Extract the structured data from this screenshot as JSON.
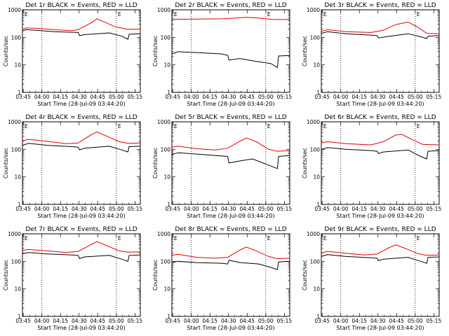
{
  "chart_data": [
    {
      "type": "line",
      "title": "Det 1r BLACK = Events, RED = LLD",
      "xlabel": "Start Time (28-Jul-09 03:44:20)",
      "ylabel": "Counts/sec",
      "x_ticks": [
        "03:45",
        "04:00",
        "04:15",
        "04:30",
        "04:45",
        "05:00",
        "05:15"
      ],
      "y_ticks": [
        "1",
        "10",
        "100",
        "1000"
      ],
      "y_scale": "log",
      "ylim": [
        1,
        1000
      ],
      "markers": [
        "04:00",
        "05:00"
      ],
      "corner_mark": "E",
      "series": [
        {
          "color": "#000000",
          "values": [
            [
              0,
              170
            ],
            [
              3,
              190
            ],
            [
              15,
              175
            ],
            [
              25,
              160
            ],
            [
              45,
              150
            ],
            [
              46,
              115
            ],
            [
              50,
              125
            ],
            [
              70,
              145
            ],
            [
              80,
              110
            ],
            [
              85,
              85
            ],
            [
              86,
              130
            ],
            [
              95,
              135
            ]
          ]
        },
        {
          "color": "#e00000",
          "values": [
            [
              0,
              190
            ],
            [
              3,
              220
            ],
            [
              15,
              210
            ],
            [
              25,
              190
            ],
            [
              40,
              175
            ],
            [
              45,
              190
            ],
            [
              55,
              330
            ],
            [
              60,
              470
            ],
            [
              68,
              330
            ],
            [
              75,
              240
            ],
            [
              85,
              195
            ],
            [
              95,
              200
            ]
          ]
        }
      ]
    },
    {
      "type": "line",
      "title": "Det 2r BLACK = Events, RED = LLD",
      "xlabel": "Start Time (28-Jul-09 03:44:20)",
      "ylabel": "Counts/sec",
      "x_ticks": [
        "03:45",
        "04:00",
        "04:15",
        "04:30",
        "04:45",
        "05:00",
        "05:15"
      ],
      "y_ticks": [
        "1",
        "10",
        "100",
        "1000"
      ],
      "y_scale": "log",
      "ylim": [
        1,
        1000
      ],
      "markers": [
        "04:00",
        "05:00"
      ],
      "corner_mark": "E",
      "series": [
        {
          "color": "#000000",
          "values": [
            [
              0,
              25
            ],
            [
              5,
              30
            ],
            [
              20,
              28
            ],
            [
              40,
              25
            ],
            [
              45,
              22
            ],
            [
              46,
              15
            ],
            [
              55,
              17
            ],
            [
              65,
              14
            ],
            [
              80,
              11
            ],
            [
              85,
              8
            ],
            [
              86,
              21
            ],
            [
              95,
              22
            ]
          ]
        },
        {
          "color": "#e00000",
          "values": [
            [
              0,
              450
            ],
            [
              20,
              460
            ],
            [
              40,
              470
            ],
            [
              55,
              510
            ],
            [
              60,
              530
            ],
            [
              70,
              500
            ],
            [
              80,
              450
            ],
            [
              95,
              440
            ]
          ]
        }
      ]
    },
    {
      "type": "line",
      "title": "Det 3r BLACK = Events, RED = LLD",
      "xlabel": "Start Time (28-Jul-09 03:44:20)",
      "ylabel": "Counts/sec",
      "x_ticks": [
        "03:45",
        "04:00",
        "04:15",
        "04:30",
        "04:45",
        "05:00",
        "05:15"
      ],
      "y_ticks": [
        "1",
        "10",
        "100",
        "1000"
      ],
      "y_scale": "log",
      "ylim": [
        1,
        1000
      ],
      "markers": [
        "04:00",
        "05:00"
      ],
      "corner_mark": "E",
      "series": [
        {
          "color": "#000000",
          "values": [
            [
              0,
              140
            ],
            [
              5,
              160
            ],
            [
              20,
              135
            ],
            [
              40,
              120
            ],
            [
              45,
              115
            ],
            [
              46,
              95
            ],
            [
              55,
              110
            ],
            [
              70,
              135
            ],
            [
              80,
              105
            ],
            [
              85,
              90
            ],
            [
              86,
              110
            ],
            [
              95,
              115
            ]
          ]
        },
        {
          "color": "#e00000",
          "values": [
            [
              0,
              165
            ],
            [
              5,
              190
            ],
            [
              20,
              160
            ],
            [
              40,
              150
            ],
            [
              50,
              180
            ],
            [
              60,
              290
            ],
            [
              70,
              360
            ],
            [
              78,
              230
            ],
            [
              85,
              140
            ],
            [
              95,
              135
            ]
          ]
        }
      ]
    },
    {
      "type": "line",
      "title": "Det 4r BLACK = Events, RED = LLD",
      "xlabel": "Start Time (28-Jul-09 03:44:20)",
      "ylabel": "Counts/sec",
      "x_ticks": [
        "03:45",
        "04:00",
        "04:15",
        "04:30",
        "04:45",
        "05:00",
        "05:15"
      ],
      "y_ticks": [
        "1",
        "10",
        "100",
        "1000"
      ],
      "y_scale": "log",
      "ylim": [
        1,
        1000
      ],
      "markers": [
        "04:00",
        "05:00"
      ],
      "corner_mark": "E",
      "series": [
        {
          "color": "#000000",
          "values": [
            [
              0,
              140
            ],
            [
              5,
              165
            ],
            [
              20,
              140
            ],
            [
              40,
              125
            ],
            [
              45,
              120
            ],
            [
              46,
              95
            ],
            [
              50,
              110
            ],
            [
              70,
              130
            ],
            [
              80,
              95
            ],
            [
              85,
              80
            ],
            [
              86,
              125
            ],
            [
              95,
              130
            ]
          ]
        },
        {
          "color": "#e00000",
          "values": [
            [
              0,
              205
            ],
            [
              5,
              230
            ],
            [
              20,
              195
            ],
            [
              35,
              160
            ],
            [
              45,
              170
            ],
            [
              55,
              330
            ],
            [
              60,
              430
            ],
            [
              68,
              300
            ],
            [
              78,
              190
            ],
            [
              85,
              165
            ],
            [
              95,
              170
            ]
          ]
        }
      ]
    },
    {
      "type": "line",
      "title": "Det 5r BLACK = Events, RED = LLD",
      "xlabel": "Start Time (28-Jul-09 03:44:20)",
      "ylabel": "Counts/sec",
      "x_ticks": [
        "03:45",
        "04:00",
        "04:15",
        "04:30",
        "04:45",
        "05:00",
        "05:15"
      ],
      "y_ticks": [
        "1",
        "10",
        "100",
        "1000"
      ],
      "y_scale": "log",
      "ylim": [
        1,
        1000
      ],
      "markers": [
        "04:00",
        "05:00"
      ],
      "corner_mark": "E",
      "series": [
        {
          "color": "#000000",
          "values": [
            [
              0,
              65
            ],
            [
              5,
              75
            ],
            [
              25,
              65
            ],
            [
              45,
              55
            ],
            [
              46,
              32
            ],
            [
              55,
              38
            ],
            [
              65,
              45
            ],
            [
              75,
              30
            ],
            [
              85,
              20
            ],
            [
              86,
              55
            ],
            [
              95,
              60
            ]
          ]
        },
        {
          "color": "#e00000",
          "values": [
            [
              0,
              120
            ],
            [
              5,
              130
            ],
            [
              20,
              105
            ],
            [
              35,
              95
            ],
            [
              45,
              110
            ],
            [
              55,
              200
            ],
            [
              60,
              260
            ],
            [
              68,
              190
            ],
            [
              78,
              100
            ],
            [
              85,
              85
            ],
            [
              95,
              90
            ]
          ]
        }
      ]
    },
    {
      "type": "line",
      "title": "Det 6r BLACK = Events, RED = LLD",
      "xlabel": "Start Time (28-Jul-09 03:44:20)",
      "ylabel": "Counts/sec",
      "x_ticks": [
        "03:45",
        "04:00",
        "04:15",
        "04:30",
        "04:45",
        "05:00",
        "05:15"
      ],
      "y_ticks": [
        "1",
        "10",
        "100",
        "1000"
      ],
      "y_scale": "log",
      "ylim": [
        1,
        1000
      ],
      "markers": [
        "04:00",
        "05:00"
      ],
      "corner_mark": "E",
      "series": [
        {
          "color": "#000000",
          "values": [
            [
              0,
              100
            ],
            [
              5,
              115
            ],
            [
              20,
              100
            ],
            [
              40,
              90
            ],
            [
              45,
              85
            ],
            [
              46,
              70
            ],
            [
              50,
              80
            ],
            [
              70,
              95
            ],
            [
              80,
              55
            ],
            [
              85,
              45
            ],
            [
              86,
              85
            ],
            [
              95,
              90
            ]
          ]
        },
        {
          "color": "#e00000",
          "values": [
            [
              0,
              170
            ],
            [
              5,
              190
            ],
            [
              20,
              160
            ],
            [
              40,
              145
            ],
            [
              50,
              190
            ],
            [
              60,
              330
            ],
            [
              65,
              350
            ],
            [
              72,
              240
            ],
            [
              82,
              150
            ],
            [
              95,
              145
            ]
          ]
        }
      ]
    },
    {
      "type": "line",
      "title": "Det 7r BLACK = Events, RED = LLD",
      "xlabel": "Start Time (28-Jul-09 03:44:20)",
      "ylabel": "Counts/sec",
      "x_ticks": [
        "03:45",
        "04:00",
        "04:15",
        "04:30",
        "04:45",
        "05:00",
        "05:15"
      ],
      "y_ticks": [
        "1",
        "10",
        "100",
        "1000"
      ],
      "y_scale": "log",
      "ylim": [
        1,
        1000
      ],
      "markers": [
        "04:00",
        "05:00"
      ],
      "corner_mark": "E",
      "series": [
        {
          "color": "#000000",
          "values": [
            [
              0,
              190
            ],
            [
              5,
              210
            ],
            [
              20,
              185
            ],
            [
              40,
              170
            ],
            [
              45,
              165
            ],
            [
              46,
              125
            ],
            [
              50,
              145
            ],
            [
              70,
              165
            ],
            [
              80,
              120
            ],
            [
              85,
              100
            ],
            [
              86,
              165
            ],
            [
              95,
              170
            ]
          ]
        },
        {
          "color": "#e00000",
          "values": [
            [
              0,
              250
            ],
            [
              5,
              270
            ],
            [
              20,
              240
            ],
            [
              35,
              210
            ],
            [
              45,
              230
            ],
            [
              55,
              400
            ],
            [
              60,
              520
            ],
            [
              68,
              370
            ],
            [
              78,
              240
            ],
            [
              85,
              215
            ],
            [
              95,
              220
            ]
          ]
        }
      ]
    },
    {
      "type": "line",
      "title": "Det 8r BLACK = Events, RED = LLD",
      "xlabel": "Start Time (28-Jul-09 03:44:20)",
      "ylabel": "Counts/sec",
      "x_ticks": [
        "03:45",
        "04:00",
        "04:15",
        "04:30",
        "04:45",
        "05:00",
        "05:15"
      ],
      "y_ticks": [
        "1",
        "10",
        "100",
        "1000"
      ],
      "y_scale": "log",
      "ylim": [
        1,
        1000
      ],
      "markers": [
        "04:00",
        "05:00"
      ],
      "corner_mark": "E",
      "series": [
        {
          "color": "#000000",
          "values": [
            [
              0,
              90
            ],
            [
              5,
              100
            ],
            [
              20,
              90
            ],
            [
              40,
              85
            ],
            [
              45,
              80
            ],
            [
              46,
              110
            ],
            [
              55,
              90
            ],
            [
              70,
              80
            ],
            [
              80,
              60
            ],
            [
              85,
              50
            ],
            [
              86,
              95
            ],
            [
              95,
              100
            ]
          ]
        },
        {
          "color": "#e00000",
          "values": [
            [
              0,
              165
            ],
            [
              5,
              180
            ],
            [
              20,
              140
            ],
            [
              35,
              130
            ],
            [
              45,
              140
            ],
            [
              55,
              260
            ],
            [
              60,
              330
            ],
            [
              68,
              240
            ],
            [
              78,
              150
            ],
            [
              85,
              125
            ],
            [
              95,
              130
            ]
          ]
        }
      ]
    },
    {
      "type": "line",
      "title": "Det 9r BLACK = Events, RED = LLD",
      "xlabel": "Start Time (28-Jul-09 03:44:20)",
      "ylabel": "Counts/sec",
      "x_ticks": [
        "03:45",
        "04:00",
        "04:15",
        "04:30",
        "04:45",
        "05:00",
        "05:15"
      ],
      "y_ticks": [
        "1",
        "10",
        "100",
        "1000"
      ],
      "y_scale": "log",
      "ylim": [
        1,
        1000
      ],
      "markers": [
        "04:00",
        "05:00"
      ],
      "corner_mark": "E",
      "series": [
        {
          "color": "#000000",
          "values": [
            [
              0,
              150
            ],
            [
              5,
              175
            ],
            [
              20,
              150
            ],
            [
              40,
              135
            ],
            [
              45,
              130
            ],
            [
              46,
              105
            ],
            [
              50,
              120
            ],
            [
              70,
              140
            ],
            [
              80,
              100
            ],
            [
              85,
              85
            ],
            [
              86,
              140
            ],
            [
              95,
              145
            ]
          ]
        },
        {
          "color": "#e00000",
          "values": [
            [
              0,
              200
            ],
            [
              5,
              230
            ],
            [
              20,
              195
            ],
            [
              35,
              170
            ],
            [
              45,
              185
            ],
            [
              55,
              320
            ],
            [
              60,
              400
            ],
            [
              68,
              290
            ],
            [
              78,
              190
            ],
            [
              85,
              165
            ],
            [
              95,
              170
            ]
          ]
        }
      ]
    }
  ]
}
